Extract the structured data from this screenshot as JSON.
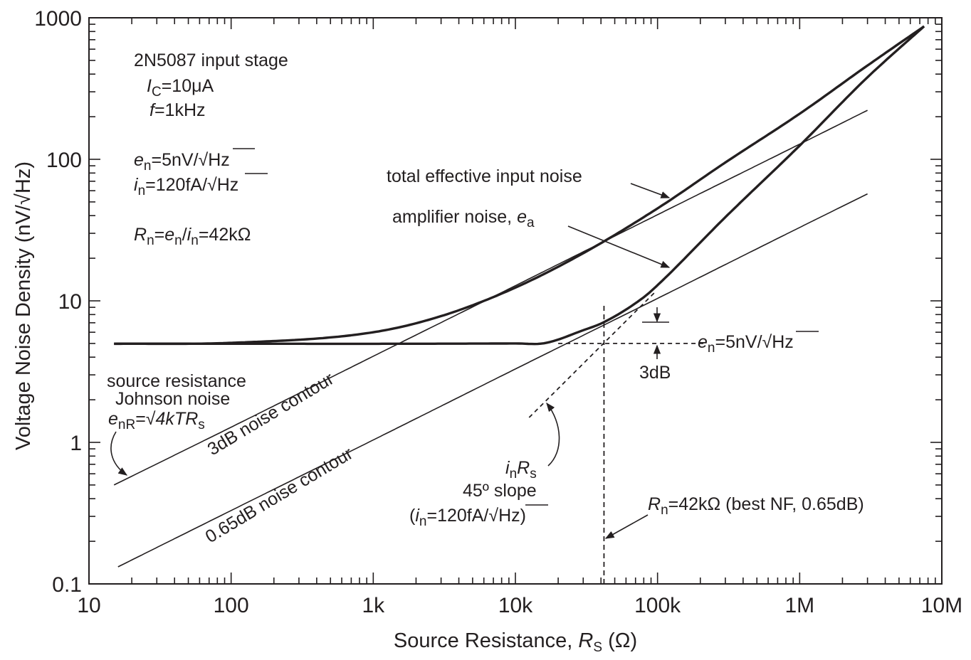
{
  "chart_data": {
    "type": "line",
    "title": "",
    "xlabel": "Source Resistance, ",
    "xlabel_var": "R",
    "xlabel_sub": "S",
    "xlabel_unit": " (Ω)",
    "ylabel": "Voltage Noise Density  (nV/√Hz)",
    "xscale": "log",
    "yscale": "log",
    "xlim": [
      10,
      10000000
    ],
    "ylim": [
      0.1,
      1000
    ],
    "x_ticks": [
      10,
      100,
      1000,
      10000,
      100000,
      1000000,
      10000000
    ],
    "x_tick_labels": [
      "10",
      "100",
      "1k",
      "10k",
      "100k",
      "1M",
      "10M"
    ],
    "y_ticks": [
      0.1,
      1,
      10,
      100,
      1000
    ],
    "y_tick_labels": [
      "0.1",
      "1",
      "10",
      "100",
      "1000"
    ],
    "params": {
      "en": 5,
      "in_fA": 120,
      "Rn": 42000
    },
    "series": [
      {
        "name": "total effective input noise",
        "style": "bold",
        "range": [
          15,
          7500000
        ],
        "points": [
          [
            15,
            4.97
          ],
          [
            100,
            5.05
          ],
          [
            1000,
            6.0
          ],
          [
            3000,
            7.8
          ],
          [
            10000,
            12.4
          ],
          [
            30000,
            21.7
          ],
          [
            100000,
            45
          ],
          [
            300000,
            95
          ],
          [
            1000000,
            210
          ],
          [
            3000000,
            460
          ],
          [
            7500000,
            870
          ]
        ]
      },
      {
        "name": "amplifier noise, ea",
        "style": "bold",
        "range": [
          15,
          7500000
        ],
        "points": [
          [
            15,
            4.98
          ],
          [
            10000,
            5.0
          ],
          [
            16000,
            5.02
          ],
          [
            30000,
            6.2
          ],
          [
            42000,
            7.07
          ],
          [
            80000,
            10.6
          ],
          [
            100000,
            12.9
          ],
          [
            300000,
            39
          ],
          [
            1000000,
            125
          ],
          [
            3000000,
            380
          ],
          [
            7500000,
            870
          ]
        ]
      },
      {
        "name": "source resistance Johnson noise",
        "style": "thin",
        "range": [
          15,
          3000000
        ],
        "points": [
          [
            15,
            0.5
          ],
          [
            100,
            1.28
          ],
          [
            1000,
            4.06
          ],
          [
            10000,
            12.8
          ],
          [
            100000,
            40.6
          ],
          [
            1000000,
            128
          ],
          [
            3000000,
            222
          ]
        ]
      },
      {
        "name": "0.65dB noise contour",
        "style": "thin",
        "range": [
          16,
          3000000
        ],
        "points": [
          [
            16,
            0.132
          ],
          [
            100,
            0.33
          ],
          [
            1000,
            1.04
          ],
          [
            10000,
            3.3
          ],
          [
            100000,
            10.4
          ],
          [
            1000000,
            33
          ],
          [
            3000000,
            57
          ]
        ]
      },
      {
        "name": "inRs 45° slope",
        "style": "dashed",
        "range": [
          12500,
          95000
        ],
        "points": [
          [
            12500,
            1.5
          ],
          [
            95000,
            11.4
          ]
        ]
      },
      {
        "name": "en reference level",
        "style": "dashed",
        "range": [
          20000,
          220000
        ],
        "points": [
          [
            20000,
            5
          ],
          [
            220000,
            5
          ]
        ]
      },
      {
        "name": "Rn marker",
        "style": "dashed-vertical",
        "x": 42000,
        "y_range": [
          0.1,
          9.5
        ]
      }
    ],
    "annotations": {
      "setup": [
        "2N5087 input stage",
        "IC=10μA",
        "f=1kHz"
      ],
      "en_note": "en=5nV/√Hz",
      "in_note": "in=120fA/√Hz",
      "rn_note": "Rn=en/in=42kΩ",
      "total_label": "total effective input noise",
      "amp_label": "amplifier noise, ea",
      "johnson_label": [
        "source resistance",
        "Johnson noise",
        "enR=√4kTRs"
      ],
      "contour_3db": "3dB noise contour",
      "contour_065": "0.65dB noise contour",
      "en_level": "en=5nV/√Hz",
      "db3": "3dB",
      "inrs_label": [
        "inRs",
        "45º slope",
        "(in=120fA/√Hz)"
      ],
      "rn_marker": "Rn=42kΩ (best NF, 0.65dB)"
    }
  }
}
